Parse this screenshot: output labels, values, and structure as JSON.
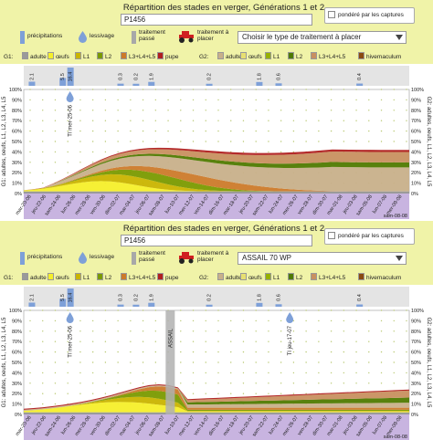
{
  "colors": {
    "panel_bg": "#f0f3a8",
    "precip": "#7ea0d8",
    "adult": "#9a9a9a",
    "eggs": "#f5ef2a",
    "L1": "#c9b400",
    "L2": "#7a9a00",
    "L3L5": "#cc7a2a",
    "pupa": "#b02020",
    "adult_g2": "#c8b08a",
    "eggs_g2": "#e8e070",
    "L1_g2": "#96b000",
    "L2_g2": "#4f7a00",
    "L3L5_g2": "#c89060",
    "hiv": "#8a4a10",
    "date_band": "#c8b4e0"
  },
  "panels": [
    {
      "title": "Répartition des stades en verger, Générations 1 et 2",
      "plot": "P1456",
      "weighted": "pondéré par les captures",
      "tools": {
        "precip": "précipitations",
        "leach": "lessivage",
        "past_treat": "traitement passé",
        "place_treat": "traitement à placer"
      },
      "treatment_select": "Choisir le type de traitement à placer",
      "legend": {
        "g1": "G1:",
        "g2": "G2:",
        "g1_items": [
          "adulte",
          "œufs",
          "L1",
          "L2",
          "L3+L4+L5",
          "pupe"
        ],
        "g2_items": [
          "adulte",
          "œufs",
          "L1",
          "L2",
          "L3+L4+L5",
          "hivemaculum"
        ]
      },
      "precip_values": [
        "2.1",
        "5.5",
        "16.4",
        "0.3",
        "0.2",
        "1.9",
        "0.2",
        "1.8",
        "0.6",
        "0.4"
      ],
      "treatment_markers": [
        {
          "label": "TI mer-25-06"
        }
      ],
      "y_left": "G1: adultes, oeufs, L1, L2, L3, L4, L5",
      "y_right": "G2: adultes, oeufs, L1, L2, L3, L4, L5",
      "ticks": [
        "100%",
        "90%",
        "80%",
        "70%",
        "60%",
        "50%",
        "40%",
        "30%",
        "20%",
        "10%",
        "0%"
      ],
      "dates": [
        "mar-20-06",
        "jeu-22-06",
        "sam-24-06",
        "lun-26-06",
        "mer-28-06",
        "ven-30-06",
        "dim-02-07",
        "mar-04-07",
        "jeu-06-07",
        "sam-08-07",
        "lun-10-07",
        "mer-12-07",
        "ven-14-07",
        "dim-16-07",
        "mar-18-07",
        "jeu-20-07",
        "sam-22-07",
        "lun-24-07",
        "mer-26-07",
        "ven-28-07",
        "dim-30-07",
        "mar-01-08",
        "jeu-03-08",
        "sam-05-08",
        "lun-07-08",
        "mer-09-08"
      ],
      "date_hint": "sam-08-08"
    },
    {
      "title": "Répartition des stades en verger, Générations 1 et 2",
      "plot": "P1456",
      "weighted": "pondéré par les captures",
      "tools": {
        "precip": "précipitations",
        "leach": "lessivage",
        "past_treat": "traitement passé",
        "place_treat": "traitement à placer"
      },
      "treatment_select": "ASSAIL 70 WP",
      "legend": {
        "g1": "G1:",
        "g2": "G2:",
        "g1_items": [
          "adulte",
          "œufs",
          "L1",
          "L2",
          "L3+L4+L5",
          "pupe"
        ],
        "g2_items": [
          "adulte",
          "œufs",
          "L1",
          "L2",
          "L3+L4+L5",
          "hivemaculum"
        ]
      },
      "precip_values": [
        "2.1",
        "5.5",
        "16.4",
        "0.3",
        "0.2",
        "1.9",
        "0.2",
        "1.8",
        "0.6",
        "0.4"
      ],
      "treatment_markers": [
        {
          "label": "TI mer-25-06"
        },
        {
          "label": "ASSAIL"
        },
        {
          "label": "TI jeu-17-07"
        }
      ],
      "y_left": "G1: adultes, oeufs, L1, L2, L3, L4, L5",
      "y_right": "G2: adultes, oeufs, L1, L2, L3, L4, L5",
      "ticks": [
        "100%",
        "90%",
        "80%",
        "70%",
        "60%",
        "50%",
        "40%",
        "30%",
        "20%",
        "10%",
        "0%"
      ],
      "dates": [
        "mar-20-06",
        "jeu-22-06",
        "sam-24-06",
        "lun-26-06",
        "mer-28-06",
        "ven-30-06",
        "dim-02-07",
        "mar-04-07",
        "jeu-06-07",
        "sam-08-07",
        "lun-10-07",
        "mer-12-07",
        "ven-14-07",
        "dim-16-07",
        "mar-18-07",
        "jeu-20-07",
        "sam-22-07",
        "lun-24-07",
        "mer-26-07",
        "ven-28-07",
        "dim-30-07",
        "mar-01-08",
        "jeu-03-08",
        "sam-05-08",
        "lun-07-08",
        "mer-09-08"
      ],
      "date_hint": "sam-08-08"
    }
  ]
}
